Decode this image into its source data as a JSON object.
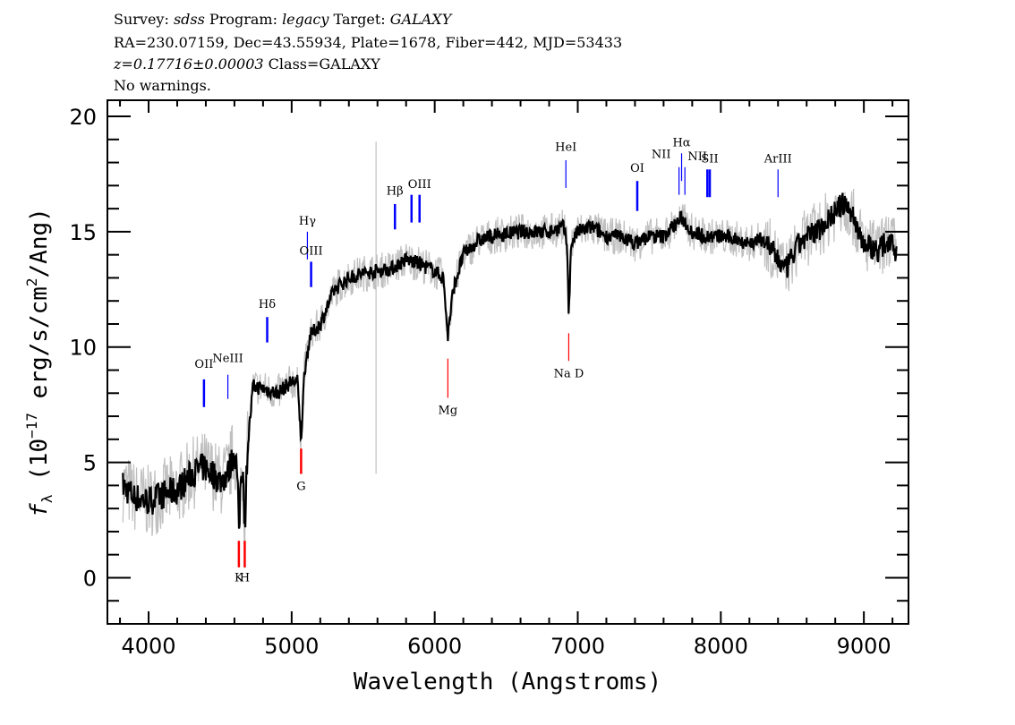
{
  "header": {
    "line1": {
      "survey_label": "Survey:",
      "survey": "sdss",
      "program_label": "Program:",
      "program": "legacy",
      "target_label": "Target:",
      "target": "GALAXY"
    },
    "line2": "RA=230.07159, Dec=43.55934, Plate=1678, Fiber=442, MJD=53433",
    "line3": {
      "z": "z=0.17716±0.00003",
      "class": "Class=GALAXY"
    },
    "line4": "No warnings."
  },
  "chart_data": {
    "type": "line",
    "xlabel": "Wavelength (Angstroms)",
    "ylabel": {
      "f": "f",
      "sub": "λ",
      "pre": " (10",
      "exp": "−17",
      "mid": " erg/s/cm",
      "exp2": "2",
      "post": "/Ang)"
    },
    "xlim": [
      3712,
      9312
    ],
    "ylim": [
      -2,
      20.7
    ],
    "xticks": [
      4000,
      5000,
      6000,
      7000,
      8000,
      9000
    ],
    "yticks": [
      0,
      5,
      10,
      15,
      20
    ],
    "grid": false,
    "colors": {
      "flux": "#000000",
      "error_band": "#c0c0c0",
      "emission": "#0000ff",
      "absorption": "#ff0000"
    },
    "series": [
      {
        "role": "smoothed-flux",
        "x": [
          3820,
          3900,
          4000,
          4100,
          4200,
          4300,
          4387,
          4450,
          4500,
          4554,
          4600,
          4620,
          4631,
          4645,
          4660,
          4672,
          4690,
          4730,
          4800,
          4900,
          5000,
          5040,
          5066,
          5090,
          5130,
          5200,
          5300,
          5400,
          5500,
          5600,
          5700,
          5800,
          5900,
          6000,
          6060,
          6092,
          6130,
          6200,
          6300,
          6400,
          6500,
          6600,
          6700,
          6800,
          6900,
          6925,
          6937,
          6955,
          7000,
          7100,
          7200,
          7300,
          7400,
          7500,
          7600,
          7726,
          7800,
          7900,
          8000,
          8100,
          8200,
          8300,
          8400,
          8450,
          8550,
          8700,
          8850,
          8900,
          9000,
          9100,
          9200,
          9230
        ],
        "y": [
          4.0,
          3.5,
          3.3,
          3.6,
          3.8,
          4.5,
          4.8,
          4.5,
          4.2,
          4.5,
          5.5,
          4.5,
          1.8,
          4.5,
          4.8,
          2.0,
          5.5,
          8.3,
          8.2,
          8.0,
          8.5,
          8.5,
          6.0,
          9.0,
          10.5,
          11.0,
          12.5,
          13.0,
          13.2,
          13.3,
          13.4,
          13.8,
          13.6,
          13.3,
          13.0,
          10.5,
          12.5,
          14.0,
          14.6,
          14.8,
          14.9,
          15.0,
          15.0,
          15.0,
          15.2,
          14.5,
          11.5,
          14.5,
          15.0,
          15.2,
          14.8,
          14.8,
          14.5,
          14.8,
          14.8,
          15.6,
          15.0,
          14.8,
          14.8,
          14.7,
          14.5,
          14.7,
          13.8,
          13.3,
          14.5,
          15.2,
          16.2,
          16.0,
          14.5,
          14.2,
          14.8,
          13.8
        ]
      }
    ],
    "lines": [
      {
        "name": "OII",
        "wave": 4387,
        "y": [
          7.4,
          8.6
        ],
        "label_y": 9.1,
        "kind": "emission",
        "weight": "bold"
      },
      {
        "name": "NeIII",
        "wave": 4554,
        "y": [
          7.75,
          8.8
        ],
        "label_y": 9.35,
        "kind": "emission",
        "weight": "thin"
      },
      {
        "name": "K",
        "wave": 4631,
        "y": [
          0.45,
          1.6
        ],
        "label_y": -0.15,
        "kind": "absorption",
        "weight": "bold"
      },
      {
        "name": "H",
        "wave": 4672,
        "y": [
          0.45,
          1.6
        ],
        "label_y": -0.15,
        "kind": "absorption",
        "weight": "bold"
      },
      {
        "name": "Hδ",
        "wave": 4829,
        "y": [
          10.2,
          11.3
        ],
        "label_y": 11.7,
        "kind": "emission",
        "weight": "bold"
      },
      {
        "name": "G",
        "wave": 5066,
        "y": [
          4.5,
          5.6
        ],
        "label_y": 3.8,
        "kind": "absorption",
        "weight": "bold"
      },
      {
        "name": "Hγ",
        "wave": 5110,
        "y": [
          13.8,
          15.0
        ],
        "label_y": 15.3,
        "kind": "emission",
        "weight": "thin"
      },
      {
        "name": "OIII",
        "wave": 5136,
        "y": [
          12.6,
          13.7
        ],
        "label_y": 14.0,
        "kind": "emission",
        "weight": "bold"
      },
      {
        "name": "Hβ",
        "wave": 5722,
        "y": [
          15.1,
          16.2
        ],
        "label_y": 16.6,
        "kind": "emission",
        "weight": "bold"
      },
      {
        "name": "",
        "wave": 5838,
        "y": [
          15.4,
          16.6
        ],
        "label_y": 16.9,
        "kind": "emission",
        "weight": "bold"
      },
      {
        "name": "OIII",
        "wave": 5894,
        "y": [
          15.4,
          16.6
        ],
        "label_y": 16.9,
        "kind": "emission",
        "weight": "bold"
      },
      {
        "name": "Mg",
        "wave": 6092,
        "y": [
          7.8,
          9.5
        ],
        "label_y": 7.1,
        "kind": "absorption",
        "weight": "thin"
      },
      {
        "name": "HeI",
        "wave": 6917,
        "y": [
          16.9,
          18.1
        ],
        "label_y": 18.5,
        "kind": "emission",
        "weight": "thin"
      },
      {
        "name": "Na D",
        "wave": 6937,
        "y": [
          9.4,
          10.6
        ],
        "label_y": 8.7,
        "kind": "absorption",
        "weight": "thin"
      },
      {
        "name": "OI",
        "wave": 7416,
        "y": [
          15.9,
          17.2
        ],
        "label_y": 17.6,
        "kind": "emission",
        "weight": "bold"
      },
      {
        "name": "NII",
        "wave": 7708,
        "y": [
          16.6,
          17.8
        ],
        "label_y": 18.2,
        "kind": "emission",
        "weight": "thin",
        "label_dx": -20
      },
      {
        "name": "Hα",
        "wave": 7726,
        "y": [
          17.2,
          18.4
        ],
        "label_y": 18.7,
        "kind": "emission",
        "weight": "thin"
      },
      {
        "name": "NII",
        "wave": 7749,
        "y": [
          16.6,
          17.8
        ],
        "label_y": 18.1,
        "kind": "emission",
        "weight": "thin",
        "label_dx": 14
      },
      {
        "name": "",
        "wave": 7906,
        "y": [
          16.5,
          17.7
        ],
        "label_y": 18.0,
        "kind": "emission",
        "weight": "bold"
      },
      {
        "name": "SII",
        "wave": 7923,
        "y": [
          16.5,
          17.7
        ],
        "label_y": 18.0,
        "kind": "emission",
        "weight": "bold"
      },
      {
        "name": "ArIII",
        "wave": 8400,
        "y": [
          16.5,
          17.7
        ],
        "label_y": 18.0,
        "kind": "emission",
        "weight": "thin"
      }
    ]
  }
}
